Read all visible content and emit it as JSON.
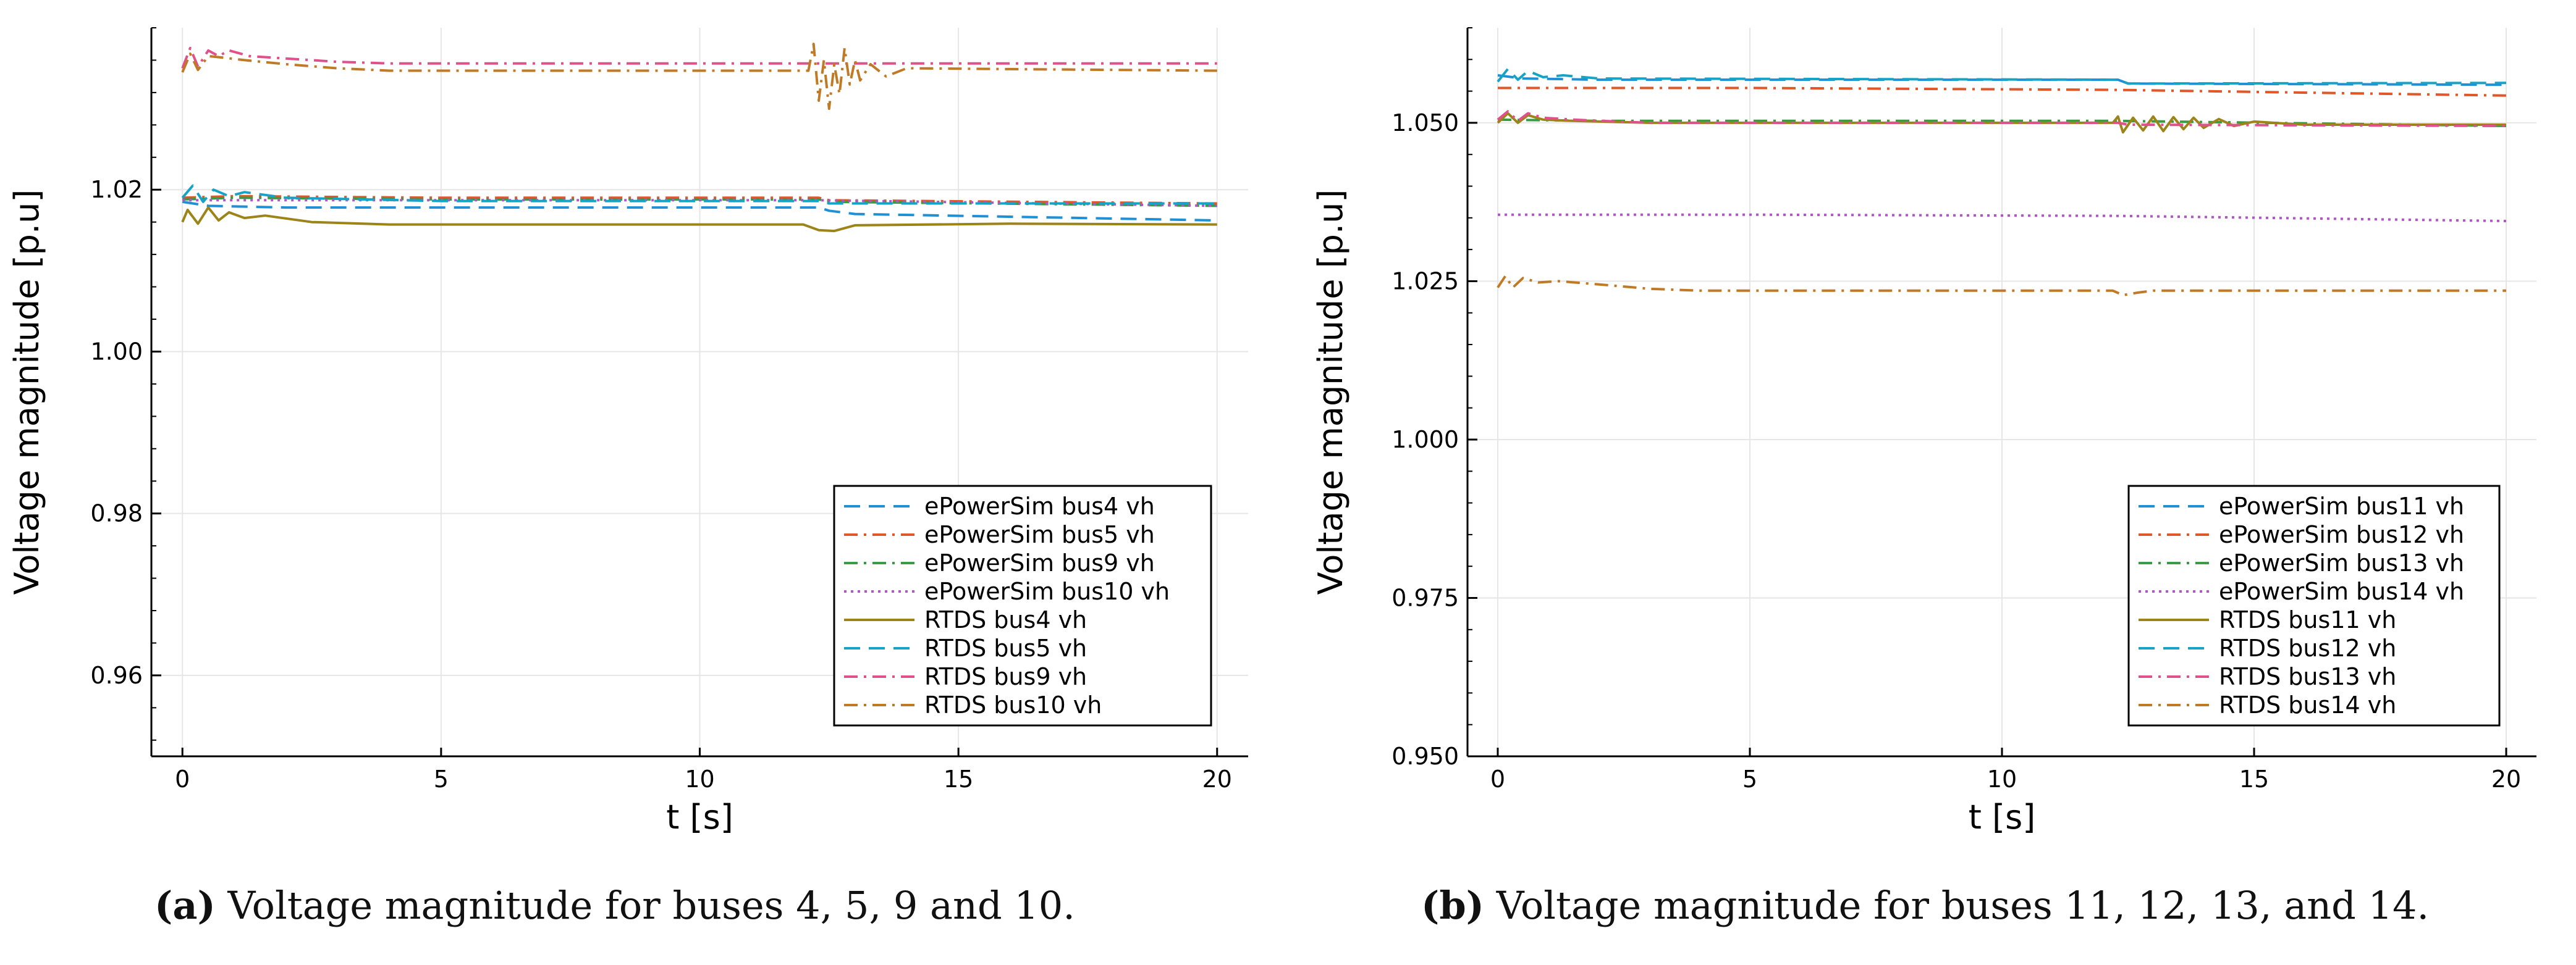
{
  "chart_data": [
    {
      "id": "a",
      "type": "line",
      "ylabel": "Voltage magnitude [p.u]",
      "xlabel": "t [s]",
      "xlim": [
        -0.6,
        20.6
      ],
      "ylim": [
        0.95,
        1.04
      ],
      "xticks": [
        0,
        5,
        10,
        15,
        20
      ],
      "xtick_labels": [
        "0",
        "5",
        "10",
        "15",
        "20"
      ],
      "yticks": [
        0.96,
        0.98,
        1.0,
        1.02
      ],
      "ytick_labels": [
        "0.96",
        "0.98",
        "1.00",
        "1.02"
      ],
      "legend_position": "bottom-right",
      "caption_label": "(a)",
      "caption_text": " Voltage magnitude for buses 4, 5, 9 and 10.",
      "series": [
        {
          "name": "ePowerSim bus4 vh",
          "color": "#1f8fd6",
          "dash": "dash",
          "points": [
            [
              0,
              1.0185
            ],
            [
              0.5,
              1.018
            ],
            [
              2,
              1.0178
            ],
            [
              10,
              1.0178
            ],
            [
              12.3,
              1.0178
            ],
            [
              12.5,
              1.0174
            ],
            [
              13,
              1.017
            ],
            [
              20,
              1.0162
            ]
          ]
        },
        {
          "name": "ePowerSim bus5 vh",
          "color": "#e0572a",
          "dash": "dashdot",
          "points": [
            [
              0,
              1.019
            ],
            [
              1,
              1.0192
            ],
            [
              5,
              1.019
            ],
            [
              12.3,
              1.019
            ],
            [
              12.5,
              1.0187
            ],
            [
              20,
              1.0183
            ]
          ]
        },
        {
          "name": "ePowerSim bus9 vh",
          "color": "#3a9b45",
          "dash": "dashdot",
          "points": [
            [
              0,
              1.0188
            ],
            [
              1,
              1.019
            ],
            [
              5,
              1.0188
            ],
            [
              12.3,
              1.0188
            ],
            [
              12.5,
              1.0185
            ],
            [
              20,
              1.018
            ]
          ]
        },
        {
          "name": "ePowerSim bus10 vh",
          "color": "#b355c9",
          "dash": "dot",
          "points": [
            [
              0,
              1.0187
            ],
            [
              5,
              1.0187
            ],
            [
              12.3,
              1.0187
            ],
            [
              20,
              1.018
            ]
          ]
        },
        {
          "name": "RTDS bus4 vh",
          "color": "#9c8418",
          "dash": "solid",
          "points": [
            [
              0,
              1.016
            ],
            [
              0.1,
              1.0175
            ],
            [
              0.3,
              1.0158
            ],
            [
              0.5,
              1.0178
            ],
            [
              0.7,
              1.0162
            ],
            [
              0.9,
              1.0172
            ],
            [
              1.2,
              1.0165
            ],
            [
              1.6,
              1.0168
            ],
            [
              2.5,
              1.016
            ],
            [
              4,
              1.0157
            ],
            [
              8,
              1.0157
            ],
            [
              12,
              1.0157
            ],
            [
              12.3,
              1.015
            ],
            [
              12.6,
              1.0149
            ],
            [
              13,
              1.0156
            ],
            [
              16,
              1.0158
            ],
            [
              20,
              1.0157
            ]
          ]
        },
        {
          "name": "RTDS bus5 vh",
          "color": "#16a4c6",
          "dash": "dash",
          "points": [
            [
              0,
              1.019
            ],
            [
              0.2,
              1.0205
            ],
            [
              0.4,
              1.0185
            ],
            [
              0.6,
              1.02
            ],
            [
              0.9,
              1.0192
            ],
            [
              1.2,
              1.0197
            ],
            [
              2,
              1.019
            ],
            [
              5,
              1.0186
            ],
            [
              12.3,
              1.0186
            ],
            [
              12.5,
              1.0183
            ],
            [
              20,
              1.0183
            ]
          ]
        },
        {
          "name": "RTDS bus9 vh",
          "color": "#e0508a",
          "dash": "dashdot",
          "points": [
            [
              0,
              1.035
            ],
            [
              0.15,
              1.0375
            ],
            [
              0.3,
              1.0352
            ],
            [
              0.5,
              1.0372
            ],
            [
              0.7,
              1.0365
            ],
            [
              0.9,
              1.0372
            ],
            [
              1.3,
              1.0365
            ],
            [
              2,
              1.0362
            ],
            [
              3,
              1.0358
            ],
            [
              4,
              1.0356
            ],
            [
              10,
              1.0356
            ],
            [
              20,
              1.0356
            ]
          ]
        },
        {
          "name": "RTDS bus10 vh",
          "color": "#c07a25",
          "dash": "dashdot",
          "points": [
            [
              0,
              1.0345
            ],
            [
              0.15,
              1.0368
            ],
            [
              0.3,
              1.0348
            ],
            [
              0.5,
              1.0365
            ],
            [
              0.8,
              1.0363
            ],
            [
              1.2,
              1.036
            ],
            [
              2,
              1.0355
            ],
            [
              3,
              1.035
            ],
            [
              4,
              1.0347
            ],
            [
              12.1,
              1.0347
            ],
            [
              12.2,
              1.038
            ],
            [
              12.3,
              1.031
            ],
            [
              12.4,
              1.036
            ],
            [
              12.5,
              1.03
            ],
            [
              12.6,
              1.0355
            ],
            [
              12.7,
              1.0318
            ],
            [
              12.8,
              1.0375
            ],
            [
              12.9,
              1.033
            ],
            [
              13.0,
              1.036
            ],
            [
              13.1,
              1.0335
            ],
            [
              13.3,
              1.0355
            ],
            [
              13.6,
              1.034
            ],
            [
              14,
              1.035
            ],
            [
              20,
              1.0347
            ]
          ]
        }
      ]
    },
    {
      "id": "b",
      "type": "line",
      "ylabel": "Voltage magnitude [p.u]",
      "xlabel": "t [s]",
      "xlim": [
        -0.6,
        20.6
      ],
      "ylim": [
        0.95,
        1.065
      ],
      "xticks": [
        0,
        5,
        10,
        15,
        20
      ],
      "xtick_labels": [
        "0",
        "5",
        "10",
        "15",
        "20"
      ],
      "yticks": [
        0.95,
        0.975,
        1.0,
        1.025,
        1.05
      ],
      "ytick_labels": [
        "0.950",
        "0.975",
        "1.000",
        "1.025",
        "1.050"
      ],
      "legend_position": "bottom-right",
      "caption_label": "(b)",
      "caption_text": " Voltage magnitude for buses 11, 12, 13, and 14.",
      "series": [
        {
          "name": "ePowerSim bus11 vh",
          "color": "#1f8fd6",
          "dash": "dash",
          "points": [
            [
              0,
              1.0575
            ],
            [
              0.5,
              1.057
            ],
            [
              2,
              1.0568
            ],
            [
              12.3,
              1.0568
            ],
            [
              12.5,
              1.0562
            ],
            [
              20,
              1.056
            ]
          ]
        },
        {
          "name": "ePowerSim bus12 vh",
          "color": "#e0572a",
          "dash": "dashdot",
          "points": [
            [
              0,
              1.0555
            ],
            [
              5,
              1.0555
            ],
            [
              12.3,
              1.0552
            ],
            [
              20,
              1.0543
            ]
          ]
        },
        {
          "name": "ePowerSim bus13 vh",
          "color": "#3a9b45",
          "dash": "dashdot",
          "points": [
            [
              0,
              1.0505
            ],
            [
              2,
              1.0503
            ],
            [
              12.3,
              1.0503
            ],
            [
              20,
              1.0495
            ]
          ]
        },
        {
          "name": "ePowerSim bus14 vh",
          "color": "#b355c9",
          "dash": "dot",
          "points": [
            [
              0,
              1.0355
            ],
            [
              5,
              1.0355
            ],
            [
              12.3,
              1.0353
            ],
            [
              20,
              1.0345
            ]
          ]
        },
        {
          "name": "RTDS bus11 vh",
          "color": "#9c8418",
          "dash": "solid",
          "points": [
            [
              0,
              1.05
            ],
            [
              0.2,
              1.0515
            ],
            [
              0.4,
              1.05
            ],
            [
              0.6,
              1.0512
            ],
            [
              0.9,
              1.0505
            ],
            [
              1.5,
              1.0503
            ],
            [
              3,
              1.05
            ],
            [
              12.2,
              1.05
            ],
            [
              12.3,
              1.051
            ],
            [
              12.4,
              1.0485
            ],
            [
              12.6,
              1.0508
            ],
            [
              12.8,
              1.0488
            ],
            [
              13.0,
              1.051
            ],
            [
              13.2,
              1.0487
            ],
            [
              13.4,
              1.0509
            ],
            [
              13.6,
              1.049
            ],
            [
              13.8,
              1.0508
            ],
            [
              14.0,
              1.0492
            ],
            [
              14.3,
              1.0506
            ],
            [
              14.6,
              1.0495
            ],
            [
              15,
              1.0502
            ],
            [
              16,
              1.0497
            ],
            [
              20,
              1.0497
            ]
          ]
        },
        {
          "name": "RTDS bus12 vh",
          "color": "#16a4c6",
          "dash": "dash",
          "points": [
            [
              0,
              1.0565
            ],
            [
              0.2,
              1.0585
            ],
            [
              0.4,
              1.0568
            ],
            [
              0.6,
              1.0582
            ],
            [
              0.9,
              1.0572
            ],
            [
              1.3,
              1.0575
            ],
            [
              2,
              1.057
            ],
            [
              12.3,
              1.0568
            ],
            [
              12.5,
              1.0562
            ],
            [
              20,
              1.0563
            ]
          ]
        },
        {
          "name": "RTDS bus13 vh",
          "color": "#e0508a",
          "dash": "dashdot",
          "points": [
            [
              0,
              1.0505
            ],
            [
              0.2,
              1.0518
            ],
            [
              0.4,
              1.0503
            ],
            [
              0.6,
              1.0515
            ],
            [
              0.9,
              1.0508
            ],
            [
              1.5,
              1.0505
            ],
            [
              3,
              1.05
            ],
            [
              12.3,
              1.05
            ],
            [
              12.5,
              1.0497
            ],
            [
              20,
              1.0495
            ]
          ]
        },
        {
          "name": "RTDS bus14 vh",
          "color": "#c07a25",
          "dash": "dashdot",
          "points": [
            [
              0,
              1.024
            ],
            [
              0.15,
              1.0258
            ],
            [
              0.3,
              1.024
            ],
            [
              0.5,
              1.0255
            ],
            [
              0.8,
              1.0248
            ],
            [
              1.2,
              1.025
            ],
            [
              2,
              1.0245
            ],
            [
              3,
              1.0238
            ],
            [
              4,
              1.0235
            ],
            [
              12.2,
              1.0235
            ],
            [
              12.4,
              1.0228
            ],
            [
              12.7,
              1.0232
            ],
            [
              13,
              1.0235
            ],
            [
              20,
              1.0235
            ]
          ]
        }
      ]
    }
  ]
}
